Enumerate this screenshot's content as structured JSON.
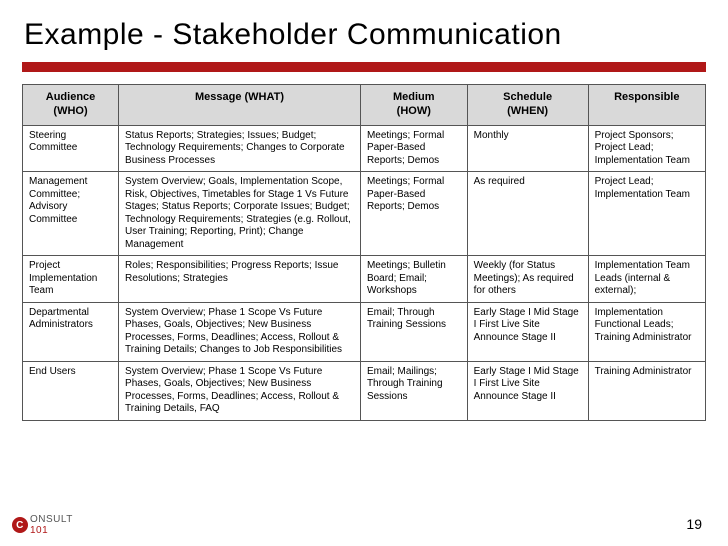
{
  "title": "Example - Stakeholder Communication",
  "accent_color": "#b01818",
  "header_bg": "#d9d9d9",
  "border_color": "#555555",
  "page_number": "19",
  "logo": {
    "initial": "C",
    "rest_a": "ONSULT",
    "rest_b": "101"
  },
  "columns": [
    {
      "key": "audience",
      "label_a": "Audience",
      "label_b": "(WHO)"
    },
    {
      "key": "message",
      "label_a": "Message (WHAT)",
      "label_b": ""
    },
    {
      "key": "medium",
      "label_a": "Medium",
      "label_b": "(HOW)"
    },
    {
      "key": "schedule",
      "label_a": "Schedule",
      "label_b": "(WHEN)"
    },
    {
      "key": "responsible",
      "label_a": "Responsible",
      "label_b": ""
    }
  ],
  "rows": [
    {
      "audience": "Steering Committee",
      "message": "Status Reports; Strategies; Issues; Budget; Technology Requirements; Changes to Corporate Business Processes",
      "medium": "Meetings; Formal Paper-Based Reports; Demos",
      "schedule": "Monthly",
      "responsible": "Project Sponsors; Project Lead; Implementation Team"
    },
    {
      "audience": "Management Committee; Advisory Committee",
      "message": "System Overview; Goals, Implementation Scope,  Risk, Objectives, Timetables for Stage 1 Vs Future Stages; Status Reports; Corporate Issues;  Budget; Technology Requirements; Strategies (e.g. Rollout, User Training; Reporting, Print); Change Management",
      "medium": "Meetings; Formal Paper-Based Reports; Demos",
      "schedule": "As required",
      "responsible": "Project Lead; Implementation Team"
    },
    {
      "audience": "Project Implementation Team",
      "message": "Roles; Responsibilities; Progress Reports; Issue Resolutions; Strategies",
      "medium": "Meetings; Bulletin Board; Email; Workshops",
      "schedule": "Weekly (for Status Meetings); As required for others",
      "responsible": "Implementation Team Leads (internal & external);"
    },
    {
      "audience": "Departmental Administrators",
      "message": "System Overview; Phase 1 Scope Vs Future Phases, Goals, Objectives; New Business Processes, Forms, Deadlines; Access, Rollout & Training Details; Changes to Job Responsibilities",
      "medium": "Email; Through Training Sessions",
      "schedule": "Early Stage I Mid Stage I First Live Site Announce Stage II",
      "responsible": "Implementation Functional Leads; Training Administrator"
    },
    {
      "audience": "End Users",
      "message": "System Overview; Phase 1 Scope Vs Future Phases, Goals, Objectives; New Business Processes, Forms, Deadlines; Access, Rollout & Training Details, FAQ",
      "medium": "Email; Mailings; Through Training Sessions",
      "schedule": "Early Stage I Mid Stage I First Live Site Announce Stage II",
      "responsible": "Training Administrator"
    }
  ]
}
